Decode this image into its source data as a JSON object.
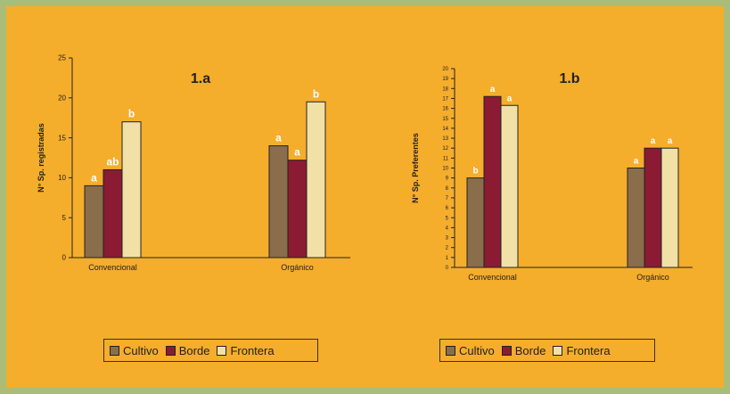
{
  "chart_data": [
    {
      "type": "bar",
      "title": "1.a",
      "ylabel": "N° Sp. registradas",
      "xlabel": "",
      "categories": [
        "Convencional",
        "Orgánico"
      ],
      "ylim": [
        0,
        25
      ],
      "yticks": [
        0,
        5,
        10,
        15,
        20,
        25
      ],
      "series": [
        {
          "name": "Cultivo",
          "color": "#8a6d4b",
          "values": [
            9,
            14
          ],
          "labels": [
            "a",
            "a"
          ]
        },
        {
          "name": "Borde",
          "color": "#8b1a33",
          "values": [
            11,
            12.2
          ],
          "labels": [
            "ab",
            "a"
          ]
        },
        {
          "name": "Frontera",
          "color": "#f2e1a6",
          "values": [
            17,
            19.5
          ],
          "labels": [
            "b",
            "b"
          ]
        }
      ],
      "legend": "bottom",
      "grid": false
    },
    {
      "type": "bar",
      "title": "1.b",
      "ylabel": "N° Sp. Preferentes",
      "xlabel": "",
      "categories": [
        "Convencional",
        "Orgánico"
      ],
      "ylim": [
        0,
        20
      ],
      "yticks": [
        0,
        1,
        2,
        3,
        4,
        5,
        6,
        7,
        8,
        9,
        10,
        11,
        12,
        13,
        14,
        15,
        16,
        17,
        18,
        19,
        20
      ],
      "series": [
        {
          "name": "Cultivo",
          "color": "#8a6d4b",
          "values": [
            9,
            10
          ],
          "labels": [
            "b",
            "a"
          ]
        },
        {
          "name": "Borde",
          "color": "#8b1a33",
          "values": [
            17.2,
            12
          ],
          "labels": [
            "a",
            "a"
          ]
        },
        {
          "name": "Frontera",
          "color": "#f2e1a6",
          "values": [
            16.3,
            12
          ],
          "labels": [
            "a",
            "a"
          ]
        }
      ],
      "legend": "bottom",
      "grid": false
    }
  ]
}
